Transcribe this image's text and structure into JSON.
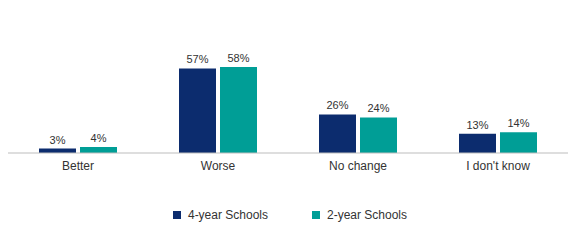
{
  "chart_data": {
    "type": "bar",
    "categories": [
      "Better",
      "Worse",
      "No change",
      "I don't know"
    ],
    "series": [
      {
        "name": "4-year Schools",
        "color": "#0c2c6e",
        "values": [
          3,
          57,
          26,
          13
        ],
        "value_labels": [
          "3%",
          "57%",
          "26%",
          "13%"
        ]
      },
      {
        "name": "2-year Schools",
        "color": "#009e96",
        "values": [
          4,
          58,
          24,
          14
        ],
        "value_labels": [
          "4%",
          "58%",
          "24%",
          "14%"
        ]
      }
    ],
    "data_labels": true,
    "tick_labels": "x",
    "legend": "bottom"
  }
}
